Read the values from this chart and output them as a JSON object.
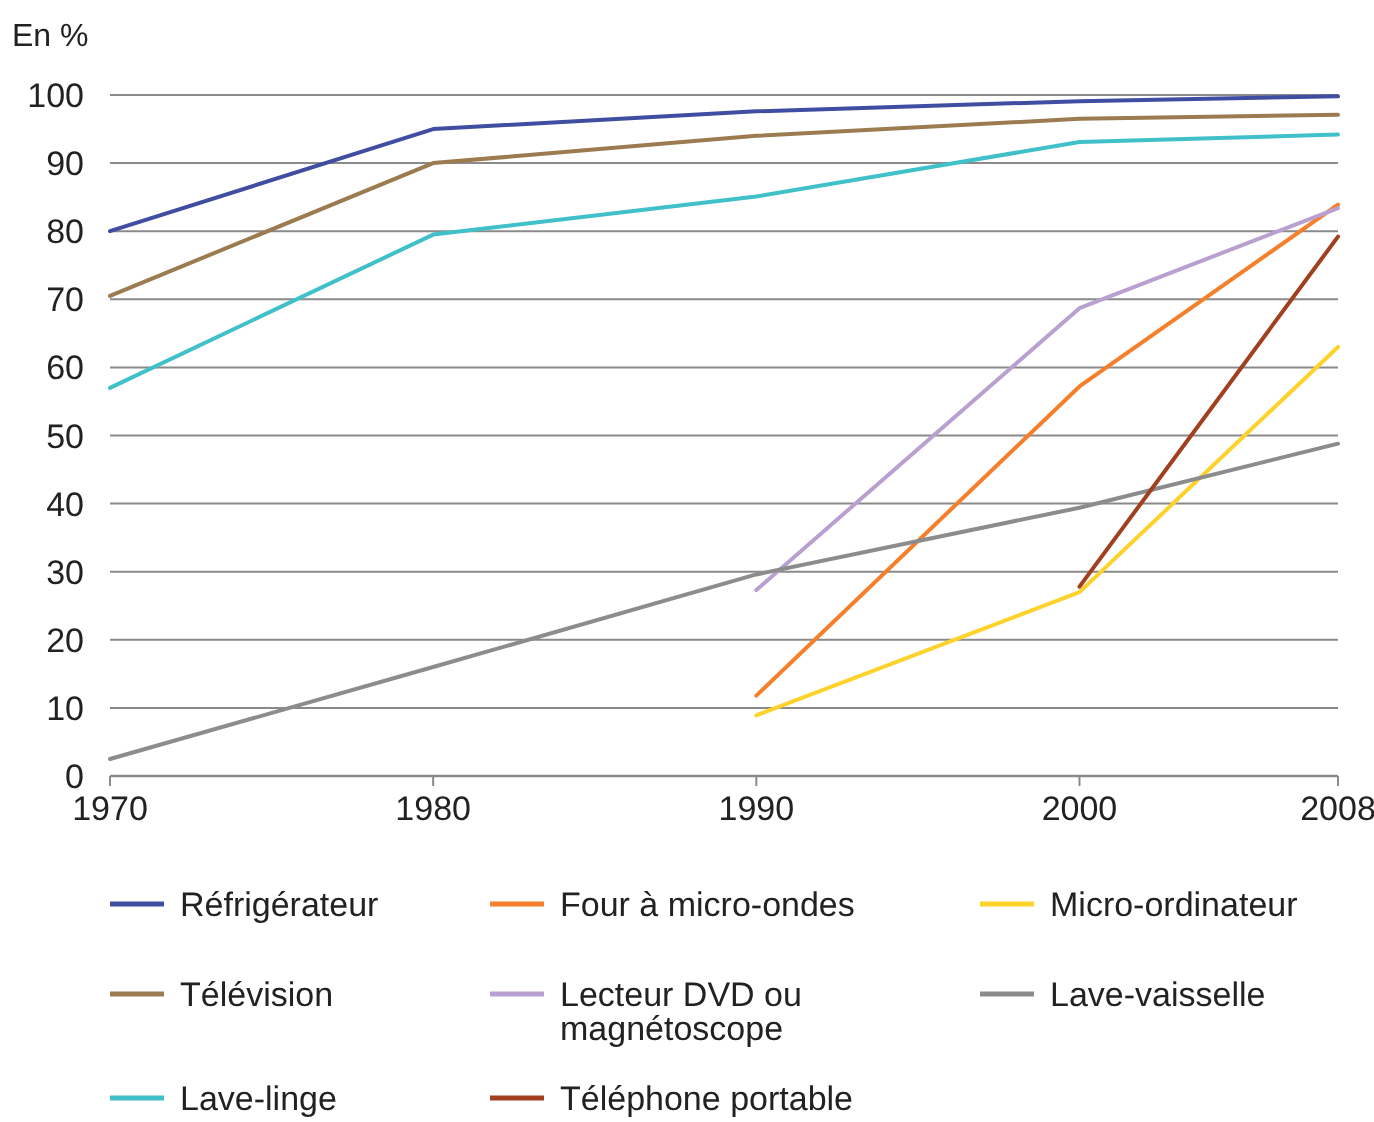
{
  "chart_data": {
    "type": "line",
    "ylabel": "En %",
    "x": [
      1970,
      1980,
      1990,
      2000,
      2008
    ],
    "xlim": [
      1970,
      2008
    ],
    "xticks": [
      1970,
      1980,
      1990,
      2000,
      2008
    ],
    "ylim": [
      0,
      100
    ],
    "yticks": [
      0,
      10,
      20,
      30,
      40,
      50,
      60,
      70,
      80,
      90,
      100
    ],
    "grid": "y",
    "legend": "bottom",
    "marker": "none",
    "line_style": "solid",
    "series": [
      {
        "name": "Réfrigérateur",
        "color": "#3f4ea1",
        "values": [
          80,
          95,
          97.6,
          99.1,
          99.8
        ]
      },
      {
        "name": "Four à micro-ondes",
        "color": "#f57f2a",
        "values": [
          null,
          null,
          11.8,
          57.2,
          83.9
        ]
      },
      {
        "name": "Micro-ordinateur",
        "color": "#fdd22a",
        "values": [
          null,
          null,
          8.9,
          27,
          63
        ]
      },
      {
        "name": "Télévision",
        "color": "#9b7b4f",
        "values": [
          70.5,
          90,
          94,
          96.5,
          97.1
        ]
      },
      {
        "name": "Lecteur DVD ou magnétoscope",
        "color": "#b9a0d0",
        "values": [
          null,
          null,
          27.3,
          68.7,
          83.4
        ]
      },
      {
        "name": "Lave-vaisselle",
        "color": "#8c8c8c",
        "values": [
          2.5,
          16,
          29.6,
          39.4,
          48.8
        ]
      },
      {
        "name": "Lave-linge",
        "color": "#40c0c8",
        "values": [
          57,
          79.5,
          85.1,
          93.1,
          94.2
        ]
      },
      {
        "name": "Téléphone portable",
        "color": "#a0401f",
        "values": [
          null,
          null,
          null,
          27.8,
          79.2
        ]
      }
    ]
  }
}
